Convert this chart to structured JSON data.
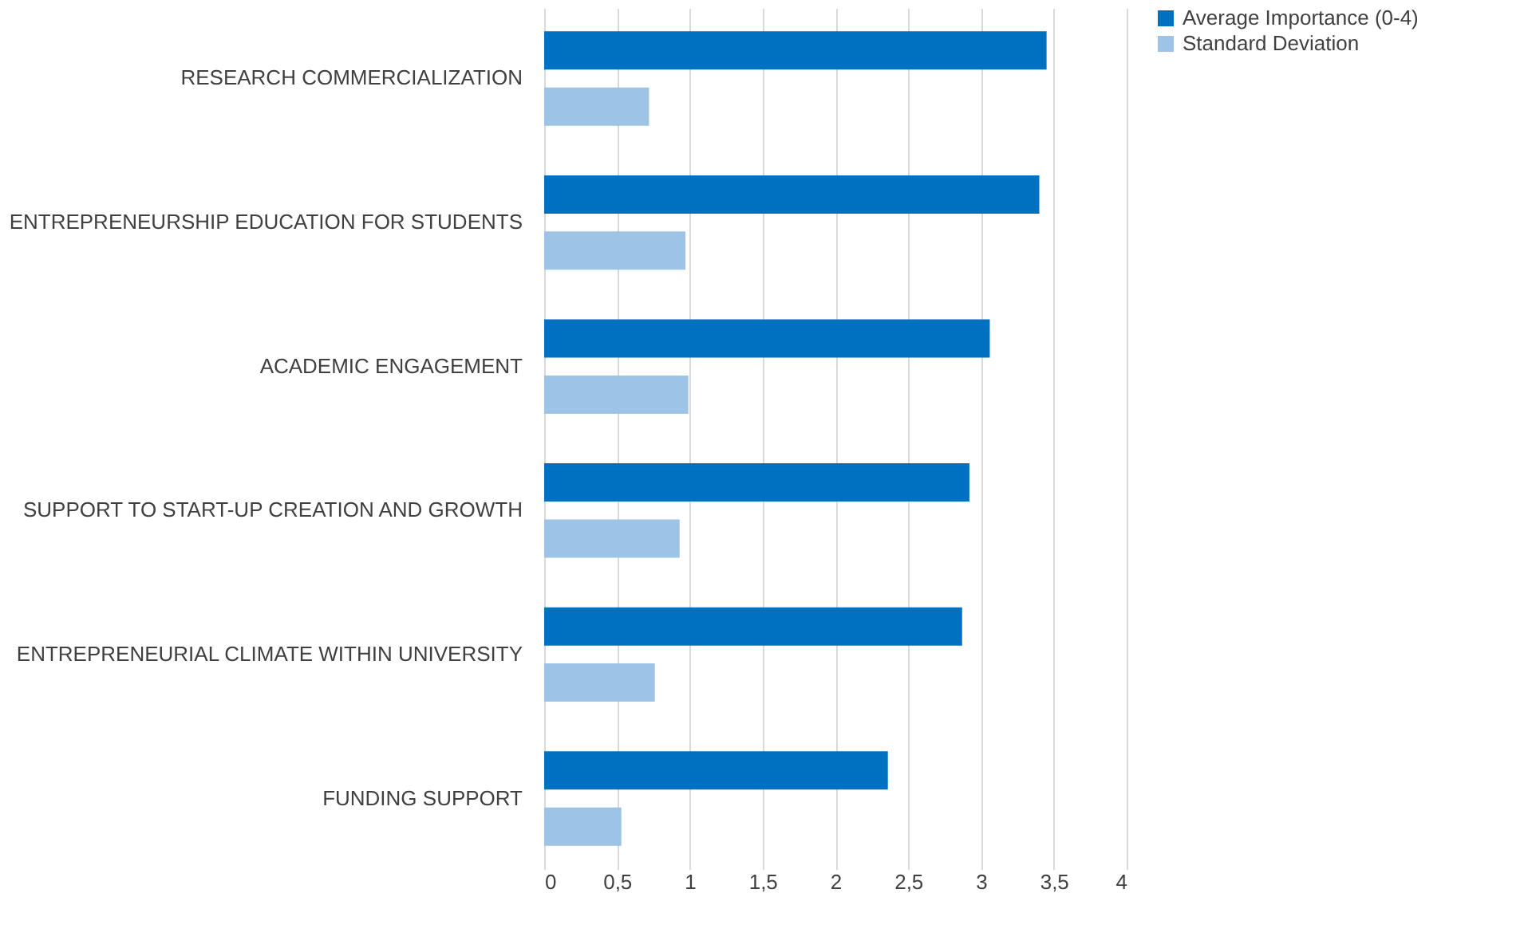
{
  "chart_data": {
    "type": "bar",
    "orientation": "horizontal",
    "categories": [
      "RESEARCH COMMERCIALIZATION",
      "ENTREPRENEURSHIP EDUCATION FOR STUDENTS",
      "ACADEMIC ENGAGEMENT",
      "SUPPORT TO START-UP CREATION AND GROWTH",
      "ENTREPRENEURIAL CLIMATE WITHIN UNIVERSITY",
      "FUNDING SUPPORT"
    ],
    "series": [
      {
        "name": "Average Importance (0-4)",
        "color": "#0070c0",
        "values": [
          3.45,
          3.4,
          3.06,
          2.92,
          2.87,
          2.36
        ]
      },
      {
        "name": "Standard Deviation",
        "color": "#9dc3e6",
        "values": [
          0.72,
          0.97,
          0.99,
          0.93,
          0.76,
          0.53
        ]
      }
    ],
    "xlim": [
      0,
      4
    ],
    "xticks": [
      0,
      {
        "value": 0.5,
        "label": "0,5"
      },
      1,
      {
        "value": 1.5,
        "label": "1,5"
      },
      2,
      {
        "value": 2.5,
        "label": "2,5"
      },
      3,
      {
        "value": 3.5,
        "label": "3,5"
      },
      4
    ],
    "grid": "x",
    "legend": "right"
  }
}
